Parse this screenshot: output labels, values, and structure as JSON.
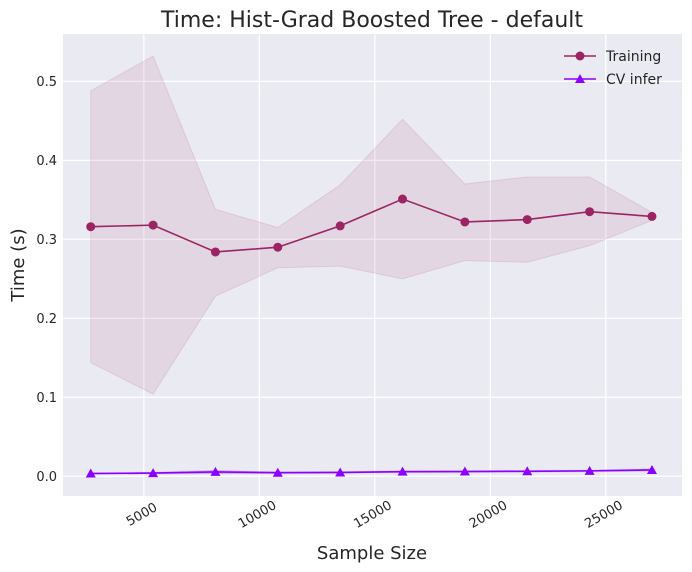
{
  "chart_data": {
    "type": "line",
    "title": "Time: Hist-Grad Boosted Tree - default",
    "xlabel": "Sample Size",
    "ylabel": "Time (s)",
    "xlim": [
      1500,
      28300
    ],
    "ylim": [
      -0.025,
      0.56
    ],
    "xticks": [
      5000,
      10000,
      15000,
      20000,
      25000
    ],
    "xtick_labels": [
      "5000",
      "10000",
      "15000",
      "20000",
      "25000"
    ],
    "yticks": [
      0.0,
      0.1,
      0.2,
      0.3,
      0.4,
      0.5
    ],
    "ytick_labels": [
      "0.0",
      "0.1",
      "0.2",
      "0.3",
      "0.4",
      "0.5"
    ],
    "grid": true,
    "legend_position": "top-right",
    "x": [
      2700,
      5400,
      8100,
      10800,
      13500,
      16200,
      18900,
      21600,
      24300,
      27000
    ],
    "series": [
      {
        "name": "Training",
        "marker": "circle",
        "color": "#9b2462",
        "values": [
          0.316,
          0.318,
          0.284,
          0.29,
          0.317,
          0.351,
          0.322,
          0.325,
          0.335,
          0.329
        ],
        "upper": [
          0.488,
          0.532,
          0.338,
          0.315,
          0.369,
          0.452,
          0.37,
          0.379,
          0.379,
          0.334
        ],
        "lower": [
          0.144,
          0.104,
          0.228,
          0.264,
          0.266,
          0.25,
          0.273,
          0.271,
          0.292,
          0.324
        ]
      },
      {
        "name": "CV infer",
        "marker": "triangle",
        "color": "#8b00ff",
        "values": [
          0.0035,
          0.004,
          0.0055,
          0.0045,
          0.0048,
          0.0058,
          0.006,
          0.0063,
          0.0068,
          0.008
        ],
        "upper": [
          0.0045,
          0.005,
          0.0075,
          0.0055,
          0.0058,
          0.0068,
          0.007,
          0.0073,
          0.0078,
          0.0095
        ],
        "lower": [
          0.0025,
          0.003,
          0.0035,
          0.0035,
          0.0038,
          0.0048,
          0.005,
          0.0053,
          0.0058,
          0.0065
        ]
      }
    ]
  }
}
